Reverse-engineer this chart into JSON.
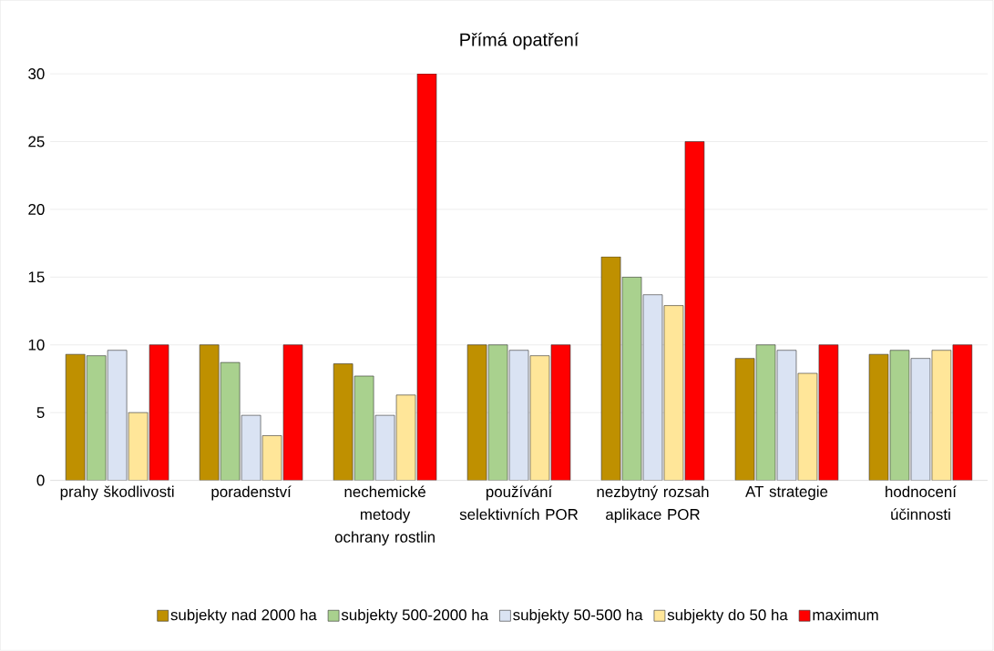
{
  "chart_data": {
    "type": "bar",
    "title": "Přímá opatření",
    "categories": [
      "prahy škodlivosti",
      "poradenství",
      "nechemické metody ochrany rostlin",
      "používání selektivních POR",
      "nezbytný rozsah aplikace POR",
      "AT strategie",
      "hodnocení účinnosti"
    ],
    "series": [
      {
        "name": "subjekty nad 2000 ha",
        "color": "#bf9000",
        "values": [
          9.3,
          10,
          8.6,
          10,
          16.5,
          9,
          9.3
        ]
      },
      {
        "name": "subjekty 500-2000 ha",
        "color": "#a9d18e",
        "values": [
          9.2,
          8.7,
          7.7,
          10,
          15,
          10,
          9.6
        ]
      },
      {
        "name": "subjekty 50-500 ha",
        "color": "#dae3f3",
        "values": [
          9.6,
          4.8,
          4.8,
          9.6,
          13.7,
          9.6,
          9
        ]
      },
      {
        "name": "subjekty do 50 ha",
        "color": "#ffe699",
        "values": [
          5,
          3.3,
          6.3,
          9.2,
          12.9,
          7.9,
          9.6
        ]
      },
      {
        "name": "maximum",
        "color": "#ff0000",
        "values": [
          10,
          10,
          30,
          10,
          25,
          10,
          10
        ]
      }
    ],
    "ylim": [
      0,
      30
    ],
    "yticks": [
      0,
      5,
      10,
      15,
      20,
      25,
      30
    ],
    "grid": "y",
    "legend": "bottom"
  }
}
